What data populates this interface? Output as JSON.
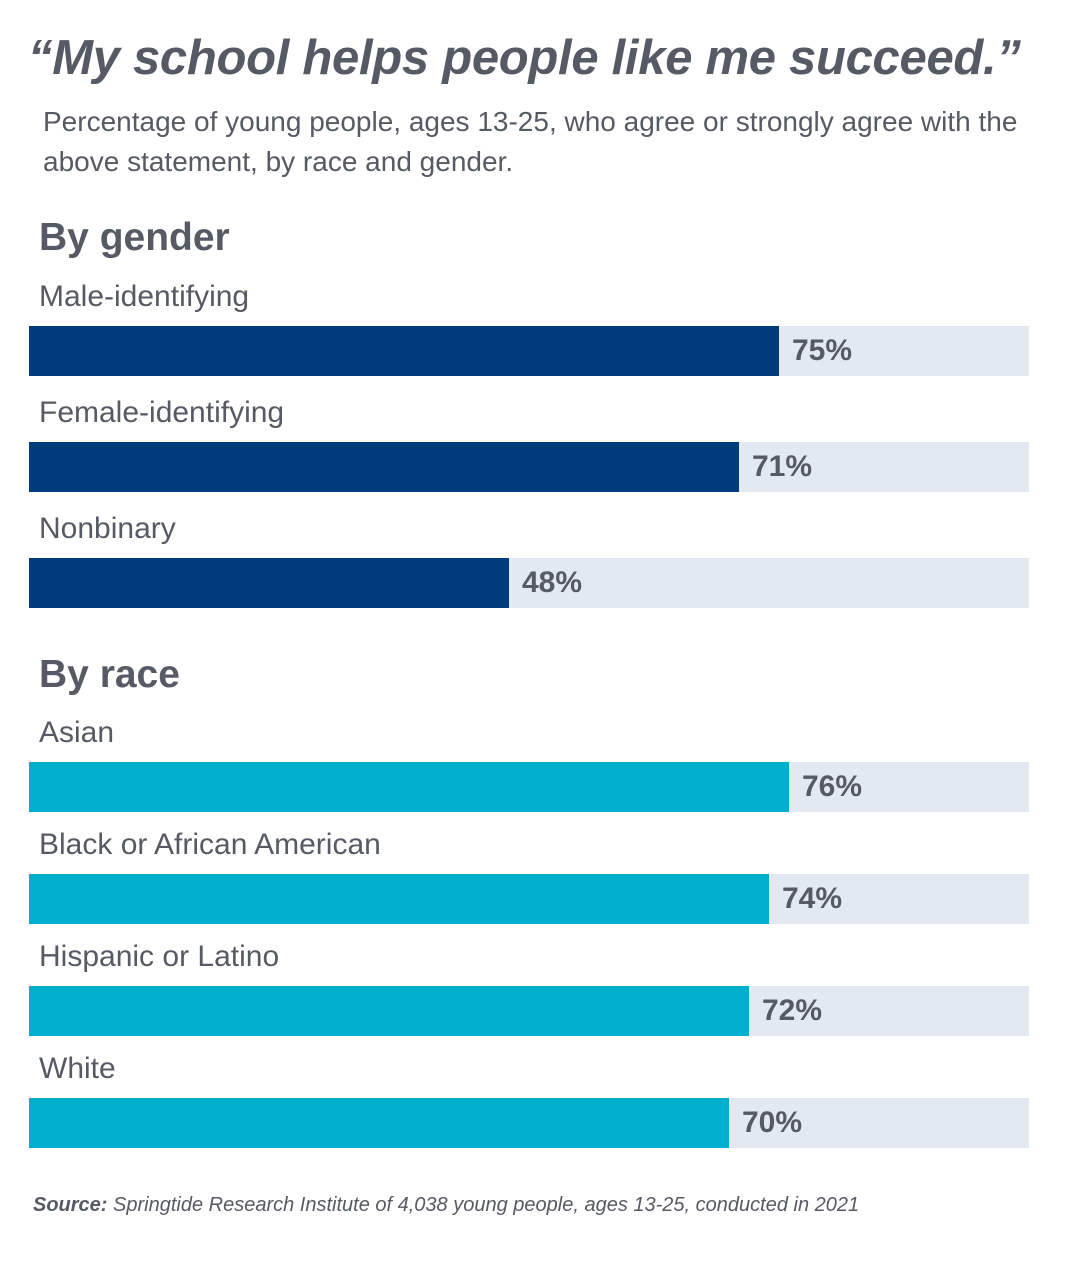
{
  "title": "“My school helps people like me succeed.”",
  "subtitle": "Percentage of young people, ages 13-25, who agree or strongly agree with the above statement, by race and gender.",
  "colors": {
    "gender_bar": "#003b7b",
    "race_bar": "#00aecd",
    "track": "#e2e9f1",
    "text": "#555a64"
  },
  "chart_data": [
    {
      "type": "bar",
      "orientation": "horizontal",
      "title": "By gender",
      "categories": [
        "Male-identifying",
        "Female-identifying",
        "Nonbinary"
      ],
      "values": [
        75,
        71,
        48
      ],
      "value_labels": [
        "75%",
        "71%",
        "48%"
      ],
      "xlim": [
        0,
        100
      ]
    },
    {
      "type": "bar",
      "orientation": "horizontal",
      "title": "By race",
      "categories": [
        "Asian",
        "Black or African American",
        "Hispanic or Latino",
        "White"
      ],
      "values": [
        76,
        74,
        72,
        70
      ],
      "value_labels": [
        "76%",
        "74%",
        "72%",
        "70%"
      ],
      "xlim": [
        0,
        100
      ]
    }
  ],
  "source": {
    "label": "Source:",
    "text": " Springtide Research Institute of 4,038 young people, ages 13-25, conducted in 2021"
  }
}
